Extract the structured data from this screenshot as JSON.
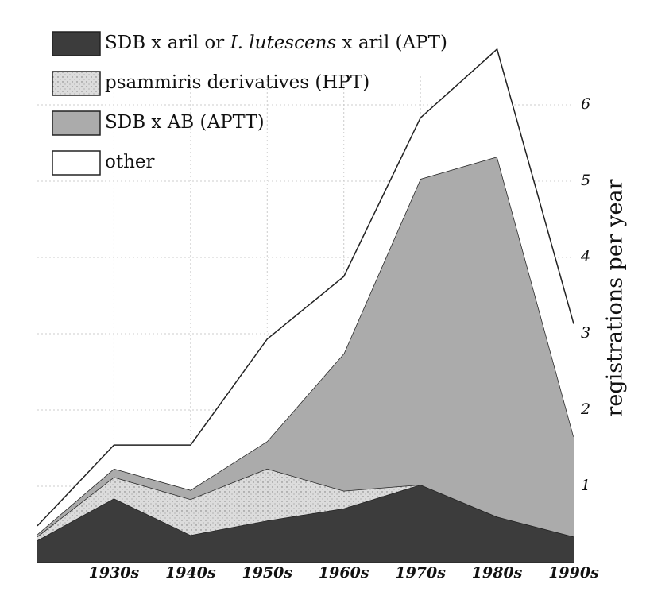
{
  "chart_data": {
    "type": "stacked_area",
    "y_label": "registrations per year",
    "categories": [
      null,
      "1930s",
      "1940s",
      "1950s",
      "1960s",
      "1970s",
      "1980s",
      "1990s"
    ],
    "series": [
      {
        "name": [
          "SDB x aril or ",
          "I. lutescens",
          " x aril (APT)"
        ],
        "color": "#3c3c3c",
        "values": [
          0.29,
          0.84,
          0.36,
          0.55,
          0.71,
          1.02,
          0.6,
          0.34
        ]
      },
      {
        "name": "psammiris derivatives (HPT)",
        "color": "#dcdcdc",
        "values": [
          0.05,
          0.28,
          0.47,
          0.68,
          0.23,
          0,
          0,
          0
        ]
      },
      {
        "name": "SDB x AB (APTT)",
        "color": "#ababab",
        "values": [
          0.03,
          0.11,
          0.12,
          0.36,
          1.8,
          4.01,
          4.72,
          1.31
        ]
      },
      {
        "name": "other",
        "color": "#ffffff",
        "values": [
          0.11,
          0.31,
          0.59,
          1.34,
          1.01,
          0.8,
          1.41,
          1.48
        ]
      }
    ],
    "ylim": [
      0,
      7
    ],
    "yticks": [
      1,
      2,
      3,
      4,
      5,
      6
    ],
    "grid": true
  }
}
